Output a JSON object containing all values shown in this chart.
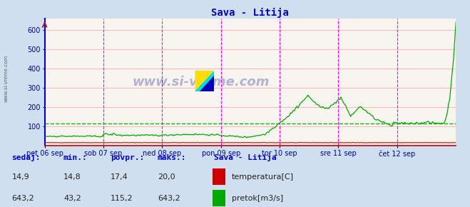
{
  "title": "Sava - Litija",
  "title_color": "#0000cc",
  "bg_color": "#d0dff0",
  "plot_bg_color": "#f8f4f0",
  "grid_color_h": "#ffaaaa",
  "grid_color_v": "#cccccc",
  "vline_color": "#ff00ff",
  "xlabel_color": "#0000aa",
  "ylabel_color": "#0000aa",
  "watermark": "www.si-vreme.com",
  "left_spine_color": "#0000dd",
  "bottom_spine_color": "#cc0000",
  "xtick_labels": [
    "pet 06 sep",
    "sob 07 sep",
    "ned 08 sep",
    "pon 09 sep",
    "tor 10 sep",
    "sre 11 sep",
    "čet 12 sep"
  ],
  "ytick_values": [
    100,
    200,
    300,
    400,
    500,
    600
  ],
  "ylim": [
    0,
    660
  ],
  "xlim": [
    0,
    336
  ],
  "avg_line_value": 115.2,
  "avg_line_color": "#00bb00",
  "temp_color": "#cc0000",
  "flow_color": "#00aa00",
  "legend_title": "Sava - Litija",
  "legend_items": [
    "temperatura[C]",
    "pretok[m3/s]"
  ],
  "legend_colors": [
    "#cc0000",
    "#00aa00"
  ],
  "stats_labels": [
    "sedaj:",
    "min.:",
    "povpr.:",
    "maks.:"
  ],
  "stats_temp": [
    "14,9",
    "14,8",
    "17,4",
    "20,0"
  ],
  "stats_flow": [
    "643,2",
    "43,2",
    "115,2",
    "643,2"
  ],
  "stats_color": "#0000cc",
  "n_points": 337,
  "vline_positions": [
    48,
    96,
    144,
    192,
    240,
    288
  ]
}
